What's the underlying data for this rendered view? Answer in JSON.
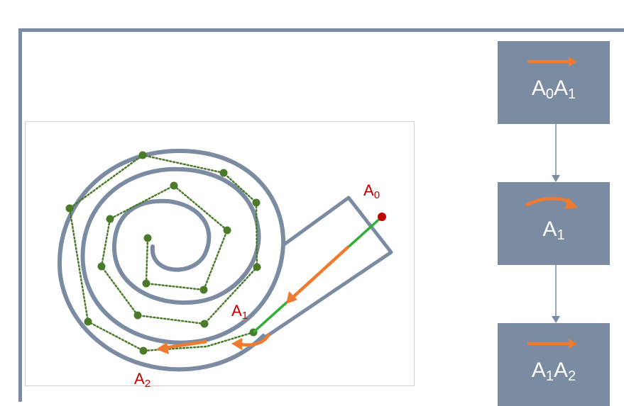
{
  "labels": {
    "a0": {
      "letter": "A",
      "sub": "0"
    },
    "a1": {
      "letter": "A",
      "sub": "1"
    },
    "a2": {
      "letter": "A",
      "sub": "2"
    }
  },
  "flow_boxes": [
    {
      "icon": "straight-arrow-icon",
      "parts": [
        {
          "letter": "A",
          "sub": "0"
        },
        {
          "letter": "A",
          "sub": "1"
        }
      ]
    },
    {
      "icon": "curved-arrow-icon",
      "parts": [
        {
          "letter": "A",
          "sub": "1"
        }
      ]
    },
    {
      "icon": "straight-arrow-icon",
      "parts": [
        {
          "letter": "A",
          "sub": "1"
        },
        {
          "letter": "A",
          "sub": "2"
        }
      ]
    }
  ],
  "colors": {
    "frame": "#7b8ba1",
    "spiral": "#7b8ba1",
    "node": "#4a7a2a",
    "path_green": "#2fae3a",
    "arrow_orange": "#ee7b30",
    "label_red": "#c00000",
    "start_point": "#c00000",
    "box_fill": "#7b8ba1",
    "box_text": "#ffffff"
  }
}
